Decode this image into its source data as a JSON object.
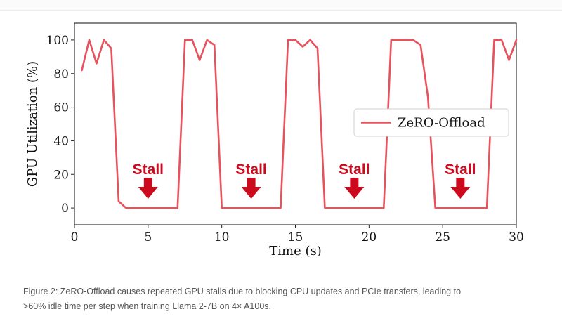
{
  "chart_data": {
    "type": "line",
    "xlabel": "Time (s)",
    "ylabel": "GPU Utilization (%)",
    "xlim": [
      0,
      30
    ],
    "ylim": [
      -10,
      110
    ],
    "xticks": [
      0,
      5,
      10,
      15,
      20,
      25,
      30
    ],
    "yticks": [
      0,
      20,
      40,
      60,
      80,
      100
    ],
    "grid": false,
    "legend_position": "center-right",
    "series": [
      {
        "name": "ZeRO-Offload",
        "color": "#e8525c",
        "x": [
          0.5,
          1.0,
          1.5,
          2.0,
          2.5,
          3.0,
          3.5,
          4.0,
          5.0,
          6.0,
          7.0,
          7.5,
          8.0,
          8.5,
          9.0,
          9.5,
          10.0,
          10.5,
          12.0,
          13.0,
          14.0,
          14.5,
          15.0,
          15.5,
          16.0,
          16.5,
          17.0,
          17.5,
          19.0,
          20.0,
          21.0,
          21.5,
          22.0,
          22.5,
          23.0,
          23.5,
          24.0,
          24.5,
          26.0,
          27.0,
          28.0,
          28.5,
          29.0,
          29.5,
          30.0
        ],
        "y": [
          82,
          100,
          86,
          100,
          95,
          4,
          0,
          0,
          0,
          0,
          0,
          100,
          100,
          88,
          100,
          97,
          0,
          0,
          0,
          0,
          0,
          100,
          100,
          96,
          100,
          95,
          0,
          0,
          0,
          0,
          0,
          100,
          100,
          100,
          100,
          97,
          66,
          0,
          0,
          0,
          0,
          100,
          100,
          88,
          100
        ]
      }
    ],
    "annotations": [
      {
        "text": "Stall",
        "x": 5.0
      },
      {
        "text": "Stall",
        "x": 12.0
      },
      {
        "text": "Stall",
        "x": 19.0
      },
      {
        "text": "Stall",
        "x": 26.2
      }
    ],
    "annotation_color": "#cc0a1e"
  },
  "caption": {
    "line1": "Figure 2: ZeRO-Offload causes repeated GPU stalls due to blocking CPU updates and PCIe transfers, leading to",
    "line2": ">60% idle time per step when training Llama 2-7B on 4× A100s."
  }
}
